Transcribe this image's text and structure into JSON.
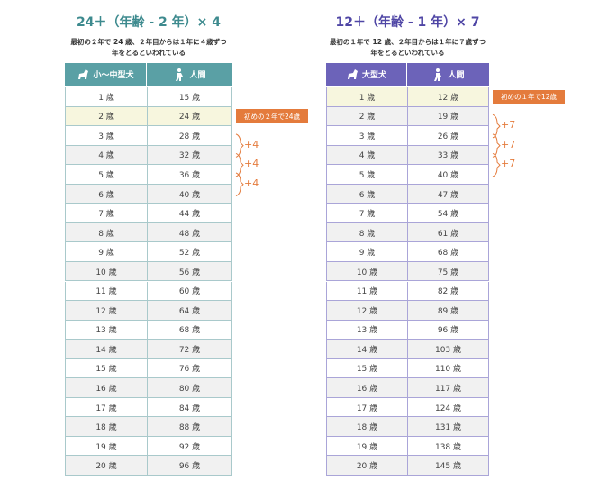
{
  "left": {
    "title": "24＋（年齢 - 2 年）× 4",
    "subtitle": [
      "最初の２年で 24 歳、２年目からは１年に４歳ずつ",
      "年をとるといわれている"
    ],
    "header": [
      "小～中型犬",
      "人間"
    ],
    "rows": [
      [
        "1 歳",
        "15 歳"
      ],
      [
        "2 歳",
        "24 歳"
      ],
      [
        "3 歳",
        "28 歳"
      ],
      [
        "4 歳",
        "32 歳"
      ],
      [
        "5 歳",
        "36 歳"
      ],
      [
        "6 歳",
        "40 歳"
      ],
      [
        "7 歳",
        "44 歳"
      ],
      [
        "8 歳",
        "48 歳"
      ],
      [
        "9 歳",
        "52 歳"
      ],
      [
        "10 歳",
        "56 歳"
      ],
      [
        "11 歳",
        "60 歳"
      ],
      [
        "12 歳",
        "64 歳"
      ],
      [
        "13 歳",
        "68 歳"
      ],
      [
        "14 歳",
        "72 歳"
      ],
      [
        "15 歳",
        "76 歳"
      ],
      [
        "16 歳",
        "80 歳"
      ],
      [
        "17 歳",
        "84 歳"
      ],
      [
        "18 歳",
        "88 歳"
      ],
      [
        "19 歳",
        "92 歳"
      ],
      [
        "20 歳",
        "96 歳"
      ]
    ],
    "callout": "初めの２年で24歳",
    "steps": [
      "+4",
      "+4",
      "+4"
    ]
  },
  "right": {
    "title": "12＋（年齢 - 1 年）× 7",
    "subtitle": [
      "最初の１年で 12 歳、２年目からは１年に７歳ずつ",
      "年をとるといわれている"
    ],
    "header": [
      "大型犬",
      "人間"
    ],
    "rows": [
      [
        "1 歳",
        "12 歳"
      ],
      [
        "2 歳",
        "19 歳"
      ],
      [
        "3 歳",
        "26 歳"
      ],
      [
        "4 歳",
        "33 歳"
      ],
      [
        "5 歳",
        "40 歳"
      ],
      [
        "6 歳",
        "47 歳"
      ],
      [
        "7 歳",
        "54 歳"
      ],
      [
        "8 歳",
        "61 歳"
      ],
      [
        "9 歳",
        "68 歳"
      ],
      [
        "10 歳",
        "75 歳"
      ],
      [
        "11 歳",
        "82 歳"
      ],
      [
        "12 歳",
        "89 歳"
      ],
      [
        "13 歳",
        "96 歳"
      ],
      [
        "14 歳",
        "103 歳"
      ],
      [
        "15 歳",
        "110 歳"
      ],
      [
        "16 歳",
        "117 歳"
      ],
      [
        "17 歳",
        "124 歳"
      ],
      [
        "18 歳",
        "131 歳"
      ],
      [
        "19 歳",
        "138 歳"
      ],
      [
        "20 歳",
        "145 歳"
      ]
    ],
    "callout": "初めの１年で12歳",
    "steps": [
      "+7",
      "+7",
      "+7"
    ]
  }
}
